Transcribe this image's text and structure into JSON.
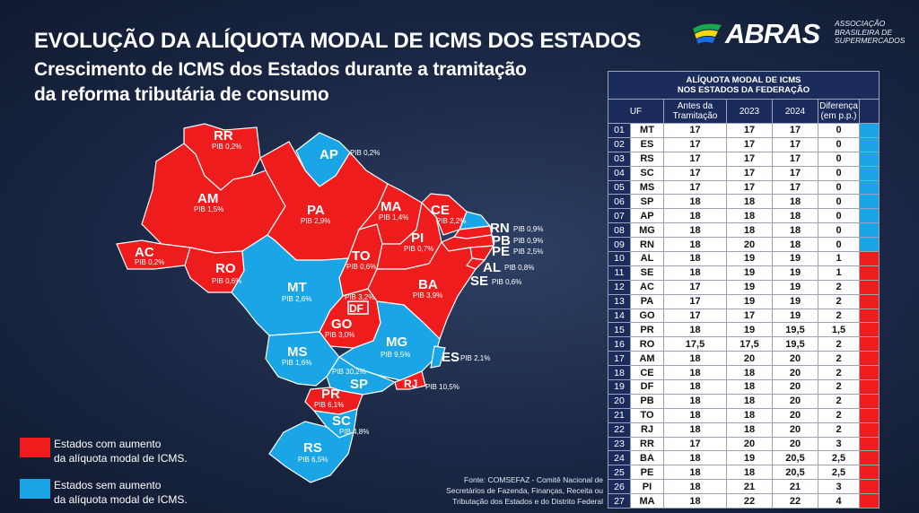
{
  "title": "EVOLUÇÃO DA ALÍQUOTA MODAL DE ICMS DOS ESTADOS",
  "subtitle_line1": "Crescimento de ICMS dos Estados durante a tramitação",
  "subtitle_line2": "da reforma tributária de consumo",
  "logo": {
    "word": "ABRAS",
    "sub_line1": "ASSOCIAÇÃO",
    "sub_line2": "BRASILEIRA DE",
    "sub_line3": "SUPERMERCADOS",
    "mark_icon": "abras-logo-icon"
  },
  "colors": {
    "increase": "#ee1c1c",
    "no_increase": "#1aa6e6",
    "header": "#1b2c5c"
  },
  "map": {
    "states": [
      {
        "uf": "RR",
        "pib": "PIB 0,2%",
        "status": "increase"
      },
      {
        "uf": "AP",
        "pib": "PIB 0,2%",
        "status": "no_increase"
      },
      {
        "uf": "AM",
        "pib": "PIB 1,5%",
        "status": "increase"
      },
      {
        "uf": "PA",
        "pib": "PIB 2,9%",
        "status": "increase"
      },
      {
        "uf": "MA",
        "pib": "PIB 1,4%",
        "status": "increase"
      },
      {
        "uf": "CE",
        "pib": "PIB 2,2%",
        "status": "increase"
      },
      {
        "uf": "RN",
        "pib": "PIB 0,9%",
        "status": "no_increase"
      },
      {
        "uf": "PB",
        "pib": "PIB 0,9%",
        "status": "increase"
      },
      {
        "uf": "PE",
        "pib": "PIB 2,5%",
        "status": "increase"
      },
      {
        "uf": "PI",
        "pib": "PIB 0,7%",
        "status": "increase"
      },
      {
        "uf": "AL",
        "pib": "PIB 0,8%",
        "status": "increase"
      },
      {
        "uf": "SE",
        "pib": "PIB 0,6%",
        "status": "increase"
      },
      {
        "uf": "AC",
        "pib": "PIB 0,2%",
        "status": "increase"
      },
      {
        "uf": "RO",
        "pib": "PIB 0,6%",
        "status": "increase"
      },
      {
        "uf": "TO",
        "pib": "PIB 0,6%",
        "status": "increase"
      },
      {
        "uf": "BA",
        "pib": "PIB 3,9%",
        "status": "increase"
      },
      {
        "uf": "MT",
        "pib": "PIB 2,6%",
        "status": "no_increase"
      },
      {
        "uf": "DF",
        "pib": "PIB 3,2%",
        "status": "increase"
      },
      {
        "uf": "GO",
        "pib": "PIB 3,0%",
        "status": "increase"
      },
      {
        "uf": "MG",
        "pib": "PIB 9,5%",
        "status": "no_increase"
      },
      {
        "uf": "ES",
        "pib": "PIB 2,1%",
        "status": "no_increase"
      },
      {
        "uf": "MS",
        "pib": "PIB 1,6%",
        "status": "no_increase"
      },
      {
        "uf": "SP",
        "pib": "PIB 30,2%",
        "status": "no_increase"
      },
      {
        "uf": "RJ",
        "pib": "PIB 10,5%",
        "status": "increase"
      },
      {
        "uf": "PR",
        "pib": "PIB 6,1%",
        "status": "increase"
      },
      {
        "uf": "SC",
        "pib": "PIB 4,8%",
        "status": "no_increase"
      },
      {
        "uf": "RS",
        "pib": "PIB 6,5%",
        "status": "no_increase"
      }
    ]
  },
  "legend": {
    "increase_line1": "Estados com aumento",
    "increase_line2": "da alíquota modal de ICMS.",
    "no_increase_line1": "Estados sem aumento",
    "no_increase_line2": "da alíquota modal de ICMS."
  },
  "source": {
    "line1": "Fonte: COMSEFAZ -  Comitê Nacional de",
    "line2": "Secretários de Fazenda, Finanças, Receita ou",
    "line3": "Tributação dos Estados e do Distrito Federal"
  },
  "table": {
    "title_line1": "ALÍQUOTA MODAL DE ICMS",
    "title_line2": "NOS ESTADOS DA FEDERAÇÃO",
    "headers": {
      "uf": "UF",
      "before_line1": "Antes da",
      "before_line2": "Tramitação",
      "y2023": "2023",
      "y2024": "2024",
      "diff_line1": "Diferença",
      "diff_line2": "(em p.p.)"
    },
    "rows": [
      {
        "n": "01",
        "uf": "MT",
        "before": "17",
        "y2023": "17",
        "y2024": "17",
        "diff": "0",
        "status": "no_increase"
      },
      {
        "n": "02",
        "uf": "ES",
        "before": "17",
        "y2023": "17",
        "y2024": "17",
        "diff": "0",
        "status": "no_increase"
      },
      {
        "n": "03",
        "uf": "RS",
        "before": "17",
        "y2023": "17",
        "y2024": "17",
        "diff": "0",
        "status": "no_increase"
      },
      {
        "n": "04",
        "uf": "SC",
        "before": "17",
        "y2023": "17",
        "y2024": "17",
        "diff": "0",
        "status": "no_increase"
      },
      {
        "n": "05",
        "uf": "MS",
        "before": "17",
        "y2023": "17",
        "y2024": "17",
        "diff": "0",
        "status": "no_increase"
      },
      {
        "n": "06",
        "uf": "SP",
        "before": "18",
        "y2023": "18",
        "y2024": "18",
        "diff": "0",
        "status": "no_increase"
      },
      {
        "n": "07",
        "uf": "AP",
        "before": "18",
        "y2023": "18",
        "y2024": "18",
        "diff": "0",
        "status": "no_increase"
      },
      {
        "n": "08",
        "uf": "MG",
        "before": "18",
        "y2023": "18",
        "y2024": "18",
        "diff": "0",
        "status": "no_increase"
      },
      {
        "n": "09",
        "uf": "RN",
        "before": "18",
        "y2023": "20",
        "y2024": "18",
        "diff": "0",
        "status": "no_increase"
      },
      {
        "n": "10",
        "uf": "AL",
        "before": "18",
        "y2023": "19",
        "y2024": "19",
        "diff": "1",
        "status": "increase"
      },
      {
        "n": "11",
        "uf": "SE",
        "before": "18",
        "y2023": "19",
        "y2024": "19",
        "diff": "1",
        "status": "increase"
      },
      {
        "n": "12",
        "uf": "AC",
        "before": "17",
        "y2023": "19",
        "y2024": "19",
        "diff": "2",
        "status": "increase"
      },
      {
        "n": "13",
        "uf": "PA",
        "before": "17",
        "y2023": "19",
        "y2024": "19",
        "diff": "2",
        "status": "increase"
      },
      {
        "n": "14",
        "uf": "GO",
        "before": "17",
        "y2023": "17",
        "y2024": "19",
        "diff": "2",
        "status": "increase"
      },
      {
        "n": "15",
        "uf": "PR",
        "before": "18",
        "y2023": "19",
        "y2024": "19,5",
        "diff": "1,5",
        "status": "increase"
      },
      {
        "n": "16",
        "uf": "RO",
        "before": "17,5",
        "y2023": "17,5",
        "y2024": "19,5",
        "diff": "2",
        "status": "increase"
      },
      {
        "n": "17",
        "uf": "AM",
        "before": "18",
        "y2023": "20",
        "y2024": "20",
        "diff": "2",
        "status": "increase"
      },
      {
        "n": "18",
        "uf": "CE",
        "before": "18",
        "y2023": "18",
        "y2024": "20",
        "diff": "2",
        "status": "increase"
      },
      {
        "n": "19",
        "uf": "DF",
        "before": "18",
        "y2023": "18",
        "y2024": "20",
        "diff": "2",
        "status": "increase"
      },
      {
        "n": "20",
        "uf": "PB",
        "before": "18",
        "y2023": "18",
        "y2024": "20",
        "diff": "2",
        "status": "increase"
      },
      {
        "n": "21",
        "uf": "TO",
        "before": "18",
        "y2023": "18",
        "y2024": "20",
        "diff": "2",
        "status": "increase"
      },
      {
        "n": "22",
        "uf": "RJ",
        "before": "18",
        "y2023": "18",
        "y2024": "20",
        "diff": "2",
        "status": "increase"
      },
      {
        "n": "23",
        "uf": "RR",
        "before": "17",
        "y2023": "20",
        "y2024": "20",
        "diff": "3",
        "status": "increase"
      },
      {
        "n": "24",
        "uf": "BA",
        "before": "18",
        "y2023": "19",
        "y2024": "20,5",
        "diff": "2,5",
        "status": "increase"
      },
      {
        "n": "25",
        "uf": "PE",
        "before": "18",
        "y2023": "18",
        "y2024": "20,5",
        "diff": "2,5",
        "status": "increase"
      },
      {
        "n": "26",
        "uf": "PI",
        "before": "18",
        "y2023": "21",
        "y2024": "21",
        "diff": "3",
        "status": "increase"
      },
      {
        "n": "27",
        "uf": "MA",
        "before": "18",
        "y2023": "22",
        "y2024": "22",
        "diff": "4",
        "status": "increase"
      }
    ]
  }
}
